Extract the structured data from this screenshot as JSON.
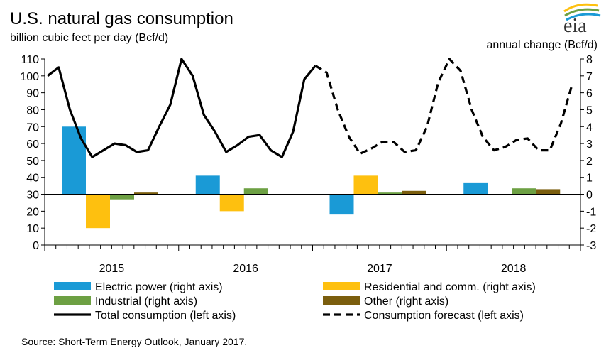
{
  "chart_data": {
    "type": "bar",
    "title": "U.S. natural gas consumption",
    "subtitle": "billion cubic feet per day (Bcf/d)",
    "left_axis": {
      "label": "",
      "ylim": [
        0,
        110
      ],
      "ticks": [
        "0",
        "10",
        "20",
        "30",
        "40",
        "50",
        "60",
        "70",
        "80",
        "90",
        "100",
        "110"
      ]
    },
    "right_axis": {
      "label": "annual change (Bcf/d)",
      "ylim": [
        -3,
        8
      ],
      "ticks": [
        "-3",
        "-2",
        "-1",
        "0",
        "1",
        "2",
        "3",
        "4",
        "5",
        "6",
        "7",
        "8"
      ]
    },
    "categories": [
      "2015",
      "2016",
      "2017",
      "2018"
    ],
    "bar_series": [
      {
        "name": "Electric power (right axis)",
        "color": "#1a9ad6",
        "values": [
          4.0,
          1.1,
          -1.2,
          0.7
        ]
      },
      {
        "name": "Residential and comm. (right axis)",
        "color": "#fec00f",
        "values": [
          -2.0,
          -1.0,
          1.1,
          0.0
        ]
      },
      {
        "name": "Industrial (right axis)",
        "color": "#6da043",
        "values": [
          -0.3,
          0.35,
          0.1,
          0.35
        ]
      },
      {
        "name": "Other (right axis)",
        "color": "#7b5e0e",
        "values": [
          0.1,
          0.0,
          0.2,
          0.3
        ]
      }
    ],
    "line_series": [
      {
        "name": "Total consumption (left axis)",
        "style": "solid",
        "color": "#000000",
        "months_start": 0,
        "values": [
          100,
          105,
          80,
          63,
          52,
          56,
          60,
          59,
          55,
          56,
          70,
          83,
          110,
          100,
          77,
          67,
          55,
          59,
          64,
          65,
          56,
          52,
          67,
          98,
          106
        ]
      },
      {
        "name": "Consumption forecast (left axis)",
        "style": "dashed",
        "color": "#000000",
        "months_start": 24,
        "values": [
          106,
          102,
          80,
          64,
          54,
          57,
          61,
          61,
          55,
          56,
          70,
          96,
          110,
          103,
          80,
          64,
          56,
          58,
          62,
          63,
          56,
          56,
          72,
          95
        ]
      }
    ],
    "legend": "bottom",
    "grid": false
  },
  "source": "Source: Short-Term Energy Outlook, January 2017.",
  "logo": {
    "text": "eia",
    "colors": [
      "#fec00f",
      "#6da043",
      "#1a9ad6"
    ]
  }
}
